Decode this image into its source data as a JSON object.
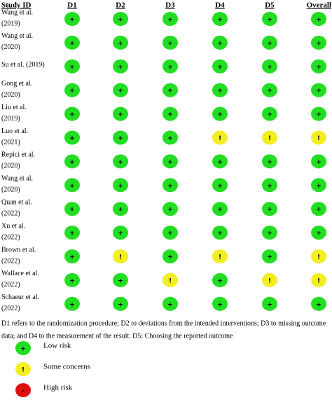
{
  "table": {
    "header": [
      "Study ID",
      "D1",
      "D2",
      "D3",
      "D4",
      "D5",
      "Overall"
    ],
    "rows": [
      {
        "study": [
          "Wang et al.",
          "(2019)"
        ],
        "judgments": [
          "+",
          "+",
          "+",
          "+",
          "+",
          "+"
        ]
      },
      {
        "study": [
          "Wang et al.",
          "(2020)"
        ],
        "judgments": [
          "+",
          "+",
          "+",
          "+",
          "+",
          "+"
        ]
      },
      {
        "study": [
          "Su et al. (2019)"
        ],
        "judgments": [
          "+",
          "+",
          "+",
          "+",
          "+",
          "+"
        ]
      },
      {
        "study": [
          "Gong et al.",
          "(2020)"
        ],
        "judgments": [
          "+",
          "+",
          "+",
          "+",
          "+",
          "+"
        ]
      },
      {
        "study": [
          "Liu et al.",
          "(2019)"
        ],
        "judgments": [
          "+",
          "+",
          "+",
          "+",
          "+",
          "+"
        ]
      },
      {
        "study": [
          "Luo et al.",
          "(2021)"
        ],
        "judgments": [
          "+",
          "+",
          "+",
          "!",
          "!",
          "!"
        ]
      },
      {
        "study": [
          "Repici et al.",
          "(2020)"
        ],
        "judgments": [
          "+",
          "+",
          "+",
          "+",
          "+",
          "+"
        ]
      },
      {
        "study": [
          "Wang et al.",
          "(2020)"
        ],
        "judgments": [
          "+",
          "+",
          "+",
          "+",
          "+",
          "+"
        ]
      },
      {
        "study": [
          "Quan et al.",
          "(2022)"
        ],
        "judgments": [
          "+",
          "+",
          "+",
          "+",
          "+",
          "+"
        ]
      },
      {
        "study": [
          "Xu et al.",
          "(2022)"
        ],
        "judgments": [
          "+",
          "+",
          "+",
          "+",
          "+",
          "+"
        ]
      },
      {
        "study": [
          "Brown et al.",
          "(2022)"
        ],
        "judgments": [
          "+",
          "!",
          "+",
          "!",
          "+",
          "!"
        ]
      },
      {
        "study": [
          "Wallace et al.",
          "(2022)"
        ],
        "judgments": [
          "+",
          "+",
          "!",
          "+",
          "!",
          "!"
        ]
      },
      {
        "study": [
          "Schaeur et al.",
          "(2022)"
        ],
        "judgments": [
          "+",
          "+",
          "+",
          "+",
          "+",
          "+"
        ]
      }
    ]
  },
  "footnote": [
    "D1 refers to the randomization procedure; D2 to deviations from the intended interventions; D3 to missing outcome",
    "data; and D4 to the measurement of the result. D5: Choosing the reported outcome"
  ],
  "legend": [
    {
      "symbol": "+",
      "label": "Low risk",
      "color": "#22dd22"
    },
    {
      "symbol": "!",
      "label": "Some concerns",
      "color": "#f2ee22"
    },
    {
      "symbol": "-",
      "label": "High risk",
      "color": "#e01010"
    }
  ]
}
